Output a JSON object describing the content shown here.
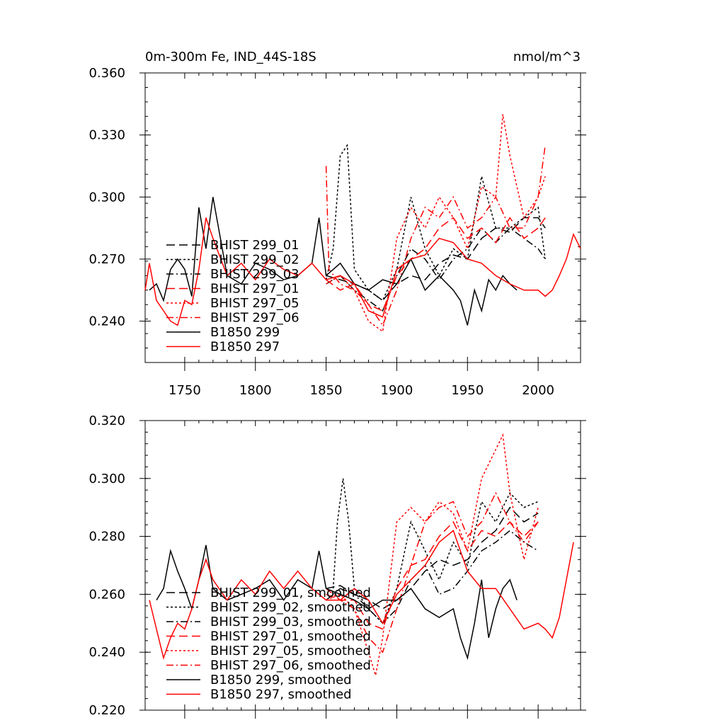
{
  "chart_data": [
    {
      "type": "line",
      "title": "0m-300m Fe, IND_44S-18S",
      "units": "nmol/m^3",
      "xlim": [
        1722,
        2030
      ],
      "ylim": [
        0.22,
        0.36
      ],
      "x_ticks": [
        1750,
        1800,
        1850,
        1900,
        1950,
        2000
      ],
      "y_ticks": [
        "0.240",
        "0.270",
        "0.300",
        "0.330",
        "0.360"
      ],
      "legend": [
        {
          "name": "BHIST 299_01",
          "color": "#000000",
          "dash": "longdash"
        },
        {
          "name": "BHIST 299_02",
          "color": "#000000",
          "dash": "dot"
        },
        {
          "name": "BHIST 299_03",
          "color": "#000000",
          "dash": "dashdot"
        },
        {
          "name": "BHIST 297_01",
          "color": "#ff0000",
          "dash": "longdash"
        },
        {
          "name": "BHIST 297_05",
          "color": "#ff0000",
          "dash": "dot"
        },
        {
          "name": "BHIST 297_06",
          "color": "#ff0000",
          "dash": "dashdot"
        },
        {
          "name": "B1850 299",
          "color": "#000000",
          "dash": "solid"
        },
        {
          "name": "B1850 297",
          "color": "#ff0000",
          "dash": "solid"
        }
      ],
      "series": [
        {
          "name": "BHIST 299_01",
          "x": [
            1850,
            1860,
            1870,
            1880,
            1890,
            1900,
            1910,
            1920,
            1930,
            1940,
            1950,
            1960,
            1970,
            1980,
            1990,
            2000,
            2005
          ],
          "values": [
            0.262,
            0.26,
            0.258,
            0.255,
            0.25,
            0.258,
            0.262,
            0.26,
            0.268,
            0.272,
            0.27,
            0.28,
            0.285,
            0.283,
            0.29,
            0.29,
            0.285
          ]
        },
        {
          "name": "BHIST 299_02",
          "x": [
            1850,
            1855,
            1860,
            1865,
            1870,
            1880,
            1890,
            1900,
            1910,
            1920,
            1930,
            1940,
            1950,
            1960,
            1970,
            1980,
            1990,
            2000,
            2005
          ],
          "values": [
            0.26,
            0.275,
            0.32,
            0.325,
            0.265,
            0.255,
            0.25,
            0.265,
            0.3,
            0.275,
            0.262,
            0.275,
            0.27,
            0.31,
            0.285,
            0.285,
            0.29,
            0.295,
            0.27
          ]
        },
        {
          "name": "BHIST 299_03",
          "x": [
            1850,
            1860,
            1870,
            1880,
            1890,
            1900,
            1910,
            1920,
            1930,
            1940,
            1950,
            1960,
            1970,
            1980,
            1990,
            2000,
            2005
          ],
          "values": [
            0.258,
            0.262,
            0.255,
            0.25,
            0.245,
            0.262,
            0.275,
            0.27,
            0.26,
            0.27,
            0.275,
            0.285,
            0.278,
            0.285,
            0.28,
            0.275,
            0.27
          ]
        },
        {
          "name": "BHIST 297_01",
          "x": [
            1850,
            1860,
            1870,
            1880,
            1890,
            1900,
            1910,
            1920,
            1930,
            1940,
            1950,
            1960,
            1970,
            1980,
            1990,
            2000,
            2005
          ],
          "values": [
            0.26,
            0.255,
            0.258,
            0.248,
            0.245,
            0.262,
            0.27,
            0.275,
            0.285,
            0.29,
            0.28,
            0.285,
            0.278,
            0.29,
            0.28,
            0.285,
            0.29
          ]
        },
        {
          "name": "BHIST 297_05",
          "x": [
            1850,
            1860,
            1870,
            1880,
            1890,
            1900,
            1910,
            1920,
            1930,
            1940,
            1950,
            1960,
            1970,
            1975,
            1980,
            1990,
            2000,
            2005
          ],
          "values": [
            0.258,
            0.262,
            0.255,
            0.24,
            0.235,
            0.28,
            0.295,
            0.285,
            0.3,
            0.29,
            0.275,
            0.305,
            0.3,
            0.34,
            0.32,
            0.29,
            0.3,
            0.31
          ]
        },
        {
          "name": "BHIST 297_06",
          "x": [
            1850,
            1852,
            1860,
            1870,
            1880,
            1890,
            1900,
            1910,
            1920,
            1930,
            1940,
            1950,
            1960,
            1970,
            1980,
            1990,
            2000,
            2005
          ],
          "values": [
            0.315,
            0.265,
            0.258,
            0.255,
            0.248,
            0.238,
            0.255,
            0.28,
            0.295,
            0.29,
            0.3,
            0.285,
            0.29,
            0.3,
            0.285,
            0.285,
            0.3,
            0.325
          ]
        },
        {
          "name": "B1850 299",
          "x": [
            1725,
            1730,
            1735,
            1740,
            1745,
            1750,
            1755,
            1760,
            1765,
            1770,
            1780,
            1790,
            1800,
            1810,
            1820,
            1830,
            1840,
            1845,
            1850,
            1860,
            1870,
            1880,
            1890,
            1900,
            1910,
            1920,
            1930,
            1940,
            1945,
            1950,
            1955,
            1960,
            1965,
            1970,
            1975,
            1980,
            1985
          ],
          "values": [
            0.255,
            0.258,
            0.25,
            0.265,
            0.27,
            0.265,
            0.252,
            0.295,
            0.275,
            0.3,
            0.262,
            0.258,
            0.268,
            0.265,
            0.26,
            0.262,
            0.268,
            0.29,
            0.262,
            0.268,
            0.258,
            0.255,
            0.26,
            0.258,
            0.27,
            0.255,
            0.262,
            0.255,
            0.25,
            0.238,
            0.255,
            0.245,
            0.26,
            0.255,
            0.262,
            0.258,
            0.255
          ]
        },
        {
          "name": "B1850 297",
          "x": [
            1722,
            1725,
            1730,
            1735,
            1740,
            1745,
            1750,
            1755,
            1760,
            1765,
            1770,
            1780,
            1790,
            1800,
            1810,
            1820,
            1830,
            1840,
            1850,
            1860,
            1870,
            1880,
            1890,
            1900,
            1910,
            1920,
            1930,
            1940,
            1950,
            1960,
            1970,
            1980,
            1990,
            2000,
            2005,
            2010,
            2015,
            2020,
            2025,
            2030
          ],
          "values": [
            0.255,
            0.268,
            0.25,
            0.245,
            0.24,
            0.238,
            0.25,
            0.248,
            0.265,
            0.29,
            0.28,
            0.262,
            0.268,
            0.26,
            0.27,
            0.265,
            0.262,
            0.268,
            0.26,
            0.262,
            0.258,
            0.245,
            0.242,
            0.265,
            0.27,
            0.272,
            0.28,
            0.278,
            0.27,
            0.268,
            0.262,
            0.258,
            0.255,
            0.255,
            0.252,
            0.255,
            0.262,
            0.27,
            0.282,
            0.275
          ]
        }
      ]
    },
    {
      "type": "line",
      "xlim": [
        1722,
        2030
      ],
      "ylim": [
        0.22,
        0.32
      ],
      "y_ticks": [
        "0.220",
        "0.240",
        "0.260",
        "0.280",
        "0.300",
        "0.320"
      ],
      "legend": [
        {
          "name": "BHIST 299_01, smoothed",
          "color": "#000000",
          "dash": "longdash"
        },
        {
          "name": "BHIST 299_02, smoothed",
          "color": "#000000",
          "dash": "dot"
        },
        {
          "name": "BHIST 299_03, smoothed",
          "color": "#000000",
          "dash": "dashdot"
        },
        {
          "name": "BHIST 297_01, smoothed",
          "color": "#ff0000",
          "dash": "longdash"
        },
        {
          "name": "BHIST 297_05, smoothed",
          "color": "#ff0000",
          "dash": "dot"
        },
        {
          "name": "BHIST 297_06, smoothed",
          "color": "#ff0000",
          "dash": "dashdot"
        },
        {
          "name": "B1850 299, smoothed",
          "color": "#000000",
          "dash": "solid"
        },
        {
          "name": "B1850 297, smoothed",
          "color": "#ff0000",
          "dash": "solid"
        }
      ],
      "series": [
        {
          "name": "BHIST 299_01, smoothed",
          "x": [
            1850,
            1860,
            1870,
            1880,
            1890,
            1900,
            1910,
            1920,
            1930,
            1940,
            1950,
            1960,
            1970,
            1980,
            1990,
            2000
          ],
          "values": [
            0.262,
            0.263,
            0.26,
            0.258,
            0.255,
            0.258,
            0.262,
            0.268,
            0.272,
            0.27,
            0.272,
            0.278,
            0.282,
            0.29,
            0.285,
            0.288
          ]
        },
        {
          "name": "BHIST 299_02, smoothed",
          "x": [
            1855,
            1858,
            1862,
            1866,
            1870,
            1880,
            1890,
            1900,
            1910,
            1920,
            1930,
            1940,
            1950,
            1960,
            1970,
            1980,
            1990,
            2000
          ],
          "values": [
            0.262,
            0.285,
            0.3,
            0.285,
            0.262,
            0.255,
            0.25,
            0.262,
            0.285,
            0.275,
            0.265,
            0.278,
            0.27,
            0.292,
            0.285,
            0.295,
            0.29,
            0.292
          ]
        },
        {
          "name": "BHIST 299_03, smoothed",
          "x": [
            1850,
            1860,
            1870,
            1880,
            1890,
            1900,
            1910,
            1920,
            1930,
            1940,
            1950,
            1960,
            1970,
            1980,
            1990,
            2000
          ],
          "values": [
            0.258,
            0.262,
            0.26,
            0.255,
            0.25,
            0.255,
            0.265,
            0.27,
            0.26,
            0.262,
            0.268,
            0.275,
            0.278,
            0.282,
            0.278,
            0.275
          ]
        },
        {
          "name": "BHIST 297_01, smoothed",
          "x": [
            1850,
            1860,
            1870,
            1880,
            1890,
            1900,
            1910,
            1920,
            1930,
            1940,
            1950,
            1960,
            1970,
            1980,
            1990,
            2000
          ],
          "values": [
            0.26,
            0.258,
            0.258,
            0.25,
            0.248,
            0.262,
            0.27,
            0.272,
            0.28,
            0.285,
            0.275,
            0.282,
            0.28,
            0.285,
            0.28,
            0.285
          ]
        },
        {
          "name": "BHIST 297_05, smoothed",
          "x": [
            1850,
            1860,
            1870,
            1880,
            1885,
            1890,
            1900,
            1910,
            1920,
            1930,
            1940,
            1950,
            1960,
            1965,
            1970,
            1975,
            1980,
            1990,
            2000
          ],
          "values": [
            0.258,
            0.26,
            0.255,
            0.24,
            0.232,
            0.245,
            0.285,
            0.29,
            0.285,
            0.292,
            0.288,
            0.275,
            0.3,
            0.305,
            0.31,
            0.315,
            0.295,
            0.272,
            0.29
          ]
        },
        {
          "name": "BHIST 297_06, smoothed",
          "x": [
            1850,
            1860,
            1870,
            1880,
            1890,
            1900,
            1910,
            1920,
            1930,
            1940,
            1950,
            1960,
            1970,
            1980,
            1990,
            2000
          ],
          "values": [
            0.262,
            0.258,
            0.255,
            0.245,
            0.24,
            0.255,
            0.27,
            0.285,
            0.29,
            0.292,
            0.28,
            0.285,
            0.295,
            0.285,
            0.278,
            0.285
          ]
        },
        {
          "name": "B1850 299, smoothed",
          "x": [
            1730,
            1735,
            1740,
            1745,
            1750,
            1755,
            1760,
            1765,
            1770,
            1780,
            1790,
            1800,
            1810,
            1820,
            1830,
            1840,
            1845,
            1850,
            1860,
            1870,
            1880,
            1890,
            1900,
            1910,
            1920,
            1930,
            1940,
            1945,
            1950,
            1955,
            1960,
            1965,
            1970,
            1975,
            1980,
            1985
          ],
          "values": [
            0.258,
            0.262,
            0.275,
            0.268,
            0.262,
            0.255,
            0.265,
            0.277,
            0.262,
            0.258,
            0.26,
            0.262,
            0.265,
            0.258,
            0.265,
            0.262,
            0.275,
            0.262,
            0.26,
            0.258,
            0.255,
            0.258,
            0.258,
            0.262,
            0.255,
            0.252,
            0.255,
            0.245,
            0.238,
            0.25,
            0.265,
            0.245,
            0.255,
            0.262,
            0.265,
            0.258
          ]
        },
        {
          "name": "B1850 297, smoothed",
          "x": [
            1725,
            1730,
            1735,
            1740,
            1745,
            1750,
            1755,
            1760,
            1765,
            1770,
            1780,
            1790,
            1800,
            1810,
            1820,
            1830,
            1840,
            1850,
            1860,
            1870,
            1880,
            1890,
            1900,
            1910,
            1920,
            1930,
            1940,
            1950,
            1960,
            1970,
            1980,
            1990,
            2000,
            2005,
            2010,
            2015,
            2020,
            2025
          ],
          "values": [
            0.258,
            0.248,
            0.238,
            0.245,
            0.25,
            0.248,
            0.255,
            0.265,
            0.272,
            0.265,
            0.258,
            0.265,
            0.26,
            0.268,
            0.262,
            0.268,
            0.262,
            0.258,
            0.258,
            0.262,
            0.258,
            0.25,
            0.26,
            0.265,
            0.27,
            0.278,
            0.282,
            0.268,
            0.262,
            0.262,
            0.255,
            0.248,
            0.25,
            0.248,
            0.245,
            0.252,
            0.265,
            0.278
          ]
        }
      ]
    }
  ]
}
